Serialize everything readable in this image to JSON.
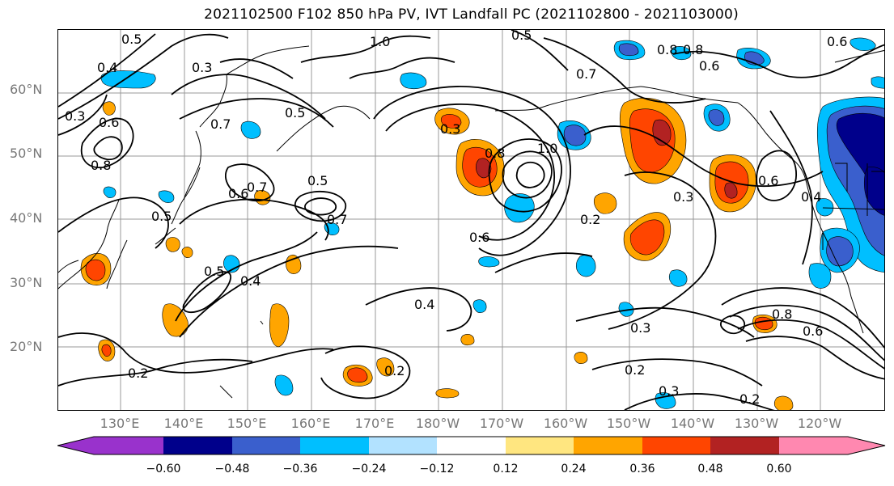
{
  "title": "2021102500 F102 850 hPa PV, IVT Landfall PC (2021102800 - 2021103000)",
  "lat_labels": [
    "60°N",
    "50°N",
    "40°N",
    "30°N",
    "20°N"
  ],
  "lon_labels": [
    "130°E",
    "140°E",
    "150°E",
    "160°E",
    "170°E",
    "180°W",
    "170°W",
    "160°W",
    "150°W",
    "140°W",
    "130°W",
    "120°W"
  ],
  "colorbar": {
    "ticks": [
      "−0.60",
      "−0.48",
      "−0.36",
      "−0.24",
      "−0.12",
      "0.12",
      "0.24",
      "0.36",
      "0.48",
      "0.60"
    ],
    "colors": [
      "#9932cc",
      "#00008b",
      "#3a5fcd",
      "#00bfff",
      "#b2e2ff",
      "#ffffff",
      "#ffe680",
      "#ffa500",
      "#ff4500",
      "#b22222",
      "#ff88b0"
    ]
  },
  "contour_labels": [
    "0.5",
    "1.0",
    "0.5",
    "0.8",
    "0.4",
    "0.3",
    "0.3",
    "0.6",
    "0.8",
    "0.7",
    "0.5",
    "0.7",
    "0.6",
    "0.5",
    "0.7",
    "0.5",
    "0.3",
    "1.0",
    "0.8",
    "0.6",
    "0.4",
    "0.2",
    "0.2",
    "0.2",
    "0.3",
    "0.2",
    "0.4",
    "0.8",
    "0.6",
    "0.2",
    "0.5",
    "0.4",
    "0.3",
    "0.6",
    "0.8",
    "0.7",
    "0.6",
    "0.6",
    "0.3"
  ]
}
